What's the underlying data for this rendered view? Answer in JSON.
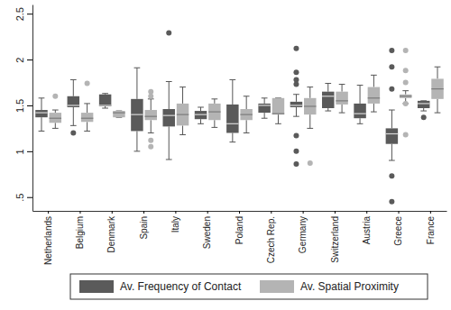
{
  "chart_data": {
    "type": "box",
    "categories": [
      "Netherlands",
      "Belgium",
      "Denmark",
      "Spain",
      "Italy",
      "Sweden",
      "Poland",
      "Czech Rep.",
      "Germany",
      "Switzerland",
      "Austria",
      "Greece",
      "France"
    ],
    "series": [
      {
        "name": "Av. Frequency of Contact",
        "color": "#5a5a5a",
        "whisker_low": [
          1.22,
          1.28,
          1.47,
          1.0,
          0.91,
          1.3,
          1.1,
          1.36,
          1.38,
          1.44,
          1.3,
          0.9,
          1.44
        ],
        "q1": [
          1.37,
          1.48,
          1.49,
          1.22,
          1.27,
          1.35,
          1.2,
          1.42,
          1.48,
          1.47,
          1.36,
          1.08,
          1.47
        ],
        "median": [
          1.42,
          1.5,
          1.5,
          1.4,
          1.39,
          1.4,
          1.3,
          1.5,
          1.5,
          1.6,
          1.41,
          1.19,
          1.52
        ],
        "q3": [
          1.45,
          1.6,
          1.62,
          1.57,
          1.46,
          1.44,
          1.51,
          1.52,
          1.54,
          1.65,
          1.52,
          1.25,
          1.55
        ],
        "whisker_high": [
          1.58,
          1.78,
          1.63,
          1.91,
          1.76,
          1.48,
          1.78,
          1.58,
          1.62,
          1.74,
          1.72,
          1.45,
          1.55
        ],
        "outliers": [
          [],
          [
            1.2
          ],
          [],
          [],
          [
            2.29
          ],
          [],
          [],
          [],
          [
            2.12,
            1.86,
            1.78,
            1.73,
            1.17,
            1.0,
            0.86
          ],
          [],
          [],
          [
            2.1,
            1.92,
            1.68,
            0.73,
            0.45
          ],
          [
            1.37
          ]
        ]
      },
      {
        "name": "Av. Spatial Proximity",
        "color": "#b4b4b4",
        "whisker_low": [
          1.25,
          1.22,
          1.37,
          1.2,
          1.18,
          1.26,
          1.2,
          1.3,
          1.25,
          1.42,
          1.43,
          1.52,
          1.42
        ],
        "q1": [
          1.31,
          1.32,
          1.37,
          1.34,
          1.28,
          1.34,
          1.34,
          1.4,
          1.4,
          1.51,
          1.52,
          1.58,
          1.57
        ],
        "median": [
          1.36,
          1.36,
          1.42,
          1.38,
          1.4,
          1.43,
          1.4,
          1.41,
          1.49,
          1.55,
          1.58,
          1.6,
          1.68
        ],
        "q3": [
          1.42,
          1.42,
          1.44,
          1.45,
          1.52,
          1.52,
          1.46,
          1.58,
          1.58,
          1.65,
          1.7,
          1.62,
          1.79
        ],
        "whisker_high": [
          1.45,
          1.52,
          1.44,
          1.57,
          1.7,
          1.57,
          1.6,
          1.58,
          1.7,
          1.73,
          1.83,
          1.66,
          1.92
        ],
        "outliers": [
          [
            1.6
          ],
          [
            1.74
          ],
          [],
          [
            1.65,
            1.6,
            1.12,
            1.05
          ],
          [],
          [],
          [],
          [],
          [
            0.87
          ],
          [],
          [],
          [
            2.1,
            1.88,
            1.75,
            1.52,
            1.18
          ],
          []
        ]
      }
    ],
    "ylim": [
      0.35,
      2.6
    ],
    "yticks": [
      {
        "value": 0.5,
        "label": ".5"
      },
      1,
      1.5,
      2,
      2.5
    ],
    "grid": false,
    "legend": "bottom"
  }
}
